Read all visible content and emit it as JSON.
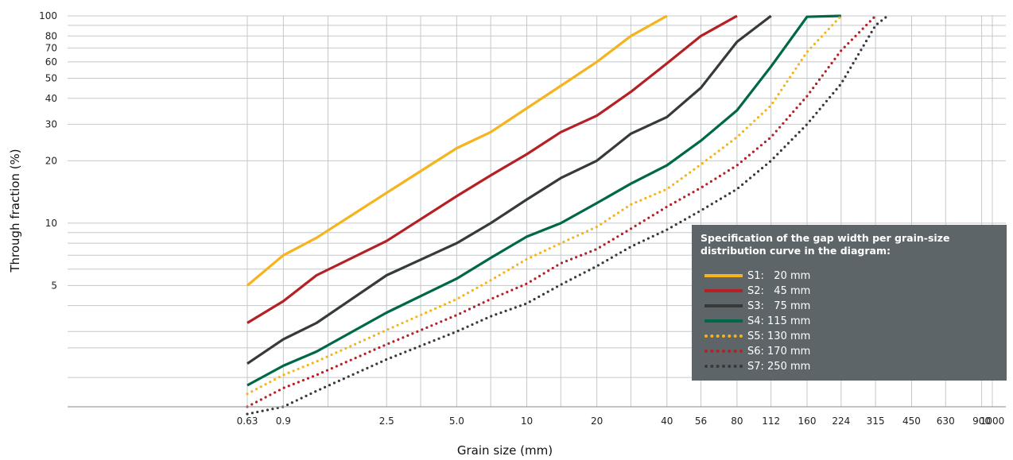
{
  "chart_data": {
    "type": "line",
    "title": "",
    "xlabel": "Grain size (mm)",
    "ylabel": "Through fraction  (%)",
    "x_scale": "log",
    "y_scale": "log",
    "xlim": [
      0.63,
      1000
    ],
    "ylim": [
      1.3,
      100
    ],
    "x_ticks": [
      {
        "value": 0.63,
        "label": "0.63"
      },
      {
        "value": 0.9,
        "label": "0.9"
      },
      {
        "value": 2.5,
        "label": "2.5"
      },
      {
        "value": 5.0,
        "label": "5.0"
      },
      {
        "value": 10,
        "label": "10"
      },
      {
        "value": 20,
        "label": "20"
      },
      {
        "value": 40,
        "label": "40"
      },
      {
        "value": 56,
        "label": "56"
      },
      {
        "value": 80,
        "label": "80"
      },
      {
        "value": 112,
        "label": "112"
      },
      {
        "value": 160,
        "label": "160"
      },
      {
        "value": 224,
        "label": "224"
      },
      {
        "value": 315,
        "label": "315"
      },
      {
        "value": 450,
        "label": "450"
      },
      {
        "value": 630,
        "label": "630"
      },
      {
        "value": 900,
        "label": "900"
      },
      {
        "value": 1000,
        "label": "1000"
      }
    ],
    "y_ticks": [
      {
        "value": 5,
        "label": "5"
      },
      {
        "value": 10,
        "label": "10"
      },
      {
        "value": 20,
        "label": "20"
      },
      {
        "value": 30,
        "label": "30"
      },
      {
        "value": 40,
        "label": "40"
      },
      {
        "value": 50,
        "label": "50"
      },
      {
        "value": 60,
        "label": "60"
      },
      {
        "value": 70,
        "label": "70"
      },
      {
        "value": 80,
        "label": "80"
      },
      {
        "value": 100,
        "label": "100"
      }
    ],
    "y_gridlines": [
      1.8,
      2.5,
      3,
      4,
      5,
      6,
      7,
      8,
      9,
      10,
      20,
      30,
      40,
      50,
      60,
      70,
      80,
      90,
      100
    ],
    "x_gridlines": [
      0.63,
      0.9,
      1.4,
      2.5,
      3.5,
      5.0,
      7,
      10,
      14,
      20,
      28,
      40,
      56,
      80,
      112,
      160,
      224,
      315,
      450,
      630,
      900,
      1000
    ],
    "grid": true,
    "legend": {
      "title": "Specification of the gap width per grain-size distribution curve in the diagram:",
      "placement": "bottom-right",
      "background": "#5d6569"
    },
    "series": [
      {
        "name": "S1:   20 mm",
        "color": "#f5b41d",
        "style": "solid",
        "x": [
          0.63,
          0.9,
          1.25,
          2.5,
          5.0,
          7,
          14,
          20,
          28,
          40
        ],
        "y": [
          5.0,
          7.0,
          8.5,
          14.0,
          23.0,
          27.5,
          46.0,
          60.0,
          80.0,
          100.0
        ]
      },
      {
        "name": "S2:   45 mm",
        "color": "#b52025",
        "style": "solid",
        "x": [
          0.63,
          0.9,
          1.25,
          2.5,
          5.0,
          7,
          10,
          14,
          20,
          28,
          40,
          56,
          80
        ],
        "y": [
          3.3,
          4.2,
          5.6,
          8.2,
          13.5,
          17.0,
          21.5,
          27.5,
          33.0,
          43.0,
          59.0,
          80.0,
          100.0
        ]
      },
      {
        "name": "S3:   75 mm",
        "color": "#363a3b",
        "style": "solid",
        "x": [
          0.63,
          0.9,
          1.25,
          2.5,
          5.0,
          7,
          10,
          14,
          20,
          28,
          40,
          56,
          80,
          112
        ],
        "y": [
          2.1,
          2.75,
          3.3,
          5.6,
          8.0,
          10.0,
          13.0,
          16.5,
          20.0,
          27.0,
          32.5,
          45.0,
          75.0,
          100.0
        ]
      },
      {
        "name": "S4: 115 mm",
        "color": "#006848",
        "style": "solid",
        "x": [
          0.63,
          0.9,
          1.25,
          2.5,
          5.0,
          7,
          10,
          14,
          20,
          28,
          40,
          56,
          80,
          112,
          160,
          224
        ],
        "y": [
          1.65,
          2.05,
          2.4,
          3.7,
          5.4,
          6.8,
          8.6,
          10.0,
          12.5,
          15.5,
          19.0,
          25.0,
          35.0,
          57.0,
          99.0,
          100.0
        ]
      },
      {
        "name": "S5: 130 mm",
        "color": "#f5b41d",
        "style": "dotted",
        "x": [
          0.63,
          0.9,
          1.25,
          2.5,
          5.0,
          7,
          10,
          14,
          20,
          28,
          40,
          56,
          80,
          112,
          160,
          224
        ],
        "y": [
          1.5,
          1.85,
          2.15,
          3.05,
          4.3,
          5.3,
          6.7,
          8.0,
          9.6,
          12.3,
          14.6,
          19.2,
          26.0,
          37.0,
          67.0,
          100.0
        ]
      },
      {
        "name": "S6: 170 mm",
        "color": "#b52025",
        "style": "dotted",
        "x": [
          0.63,
          0.9,
          1.25,
          2.5,
          5.0,
          7,
          10,
          14,
          20,
          28,
          40,
          56,
          80,
          112,
          160,
          224,
          315
        ],
        "y": [
          1.3,
          1.6,
          1.85,
          2.6,
          3.6,
          4.3,
          5.1,
          6.4,
          7.5,
          9.4,
          12.0,
          14.8,
          19.0,
          26.0,
          41.0,
          68.0,
          100.0
        ]
      },
      {
        "name": "S7: 250 mm",
        "color": "#363a3b",
        "style": "dotted",
        "x": [
          0.63,
          0.9,
          1.25,
          2.5,
          5.0,
          7,
          10,
          14,
          20,
          28,
          40,
          56,
          80,
          112,
          160,
          224,
          315,
          355
        ],
        "y": [
          1.2,
          1.3,
          1.55,
          2.2,
          3.0,
          3.55,
          4.1,
          5.05,
          6.2,
          7.7,
          9.3,
          11.5,
          14.6,
          20.0,
          30.0,
          47.0,
          90.0,
          100.0
        ]
      }
    ]
  }
}
